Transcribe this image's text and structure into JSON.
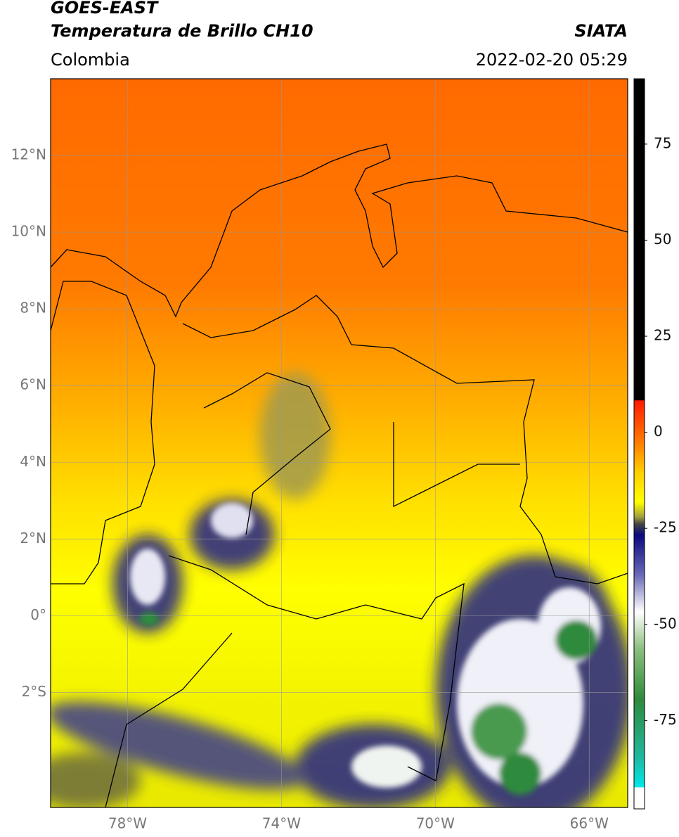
{
  "header": {
    "title": "GOES-EAST",
    "subtitle": "Temperatura de Brillo CH10",
    "source": "SIATA",
    "region": "Colombia",
    "timestamp": "2022-02-20 05:29"
  },
  "map": {
    "lon_range": [
      -80,
      -65
    ],
    "lat_range": [
      -5,
      14
    ],
    "lat_ticks": [
      {
        "value": 12,
        "label": "12°N"
      },
      {
        "value": 10,
        "label": "10°N"
      },
      {
        "value": 8,
        "label": "8°N"
      },
      {
        "value": 6,
        "label": "6°N"
      },
      {
        "value": 4,
        "label": "4°N"
      },
      {
        "value": 2,
        "label": "2°N"
      },
      {
        "value": 0,
        "label": "0°"
      },
      {
        "value": -2,
        "label": "2°S"
      }
    ],
    "lon_ticks": [
      {
        "value": -78,
        "label": "78°W"
      },
      {
        "value": -74,
        "label": "74°W"
      },
      {
        "value": -70,
        "label": "70°W"
      },
      {
        "value": -66,
        "label": "66°W"
      }
    ]
  },
  "colorbar": {
    "range": [
      -98,
      92
    ],
    "ticks": [
      75,
      50,
      25,
      0,
      -25,
      -50,
      -75
    ]
  }
}
